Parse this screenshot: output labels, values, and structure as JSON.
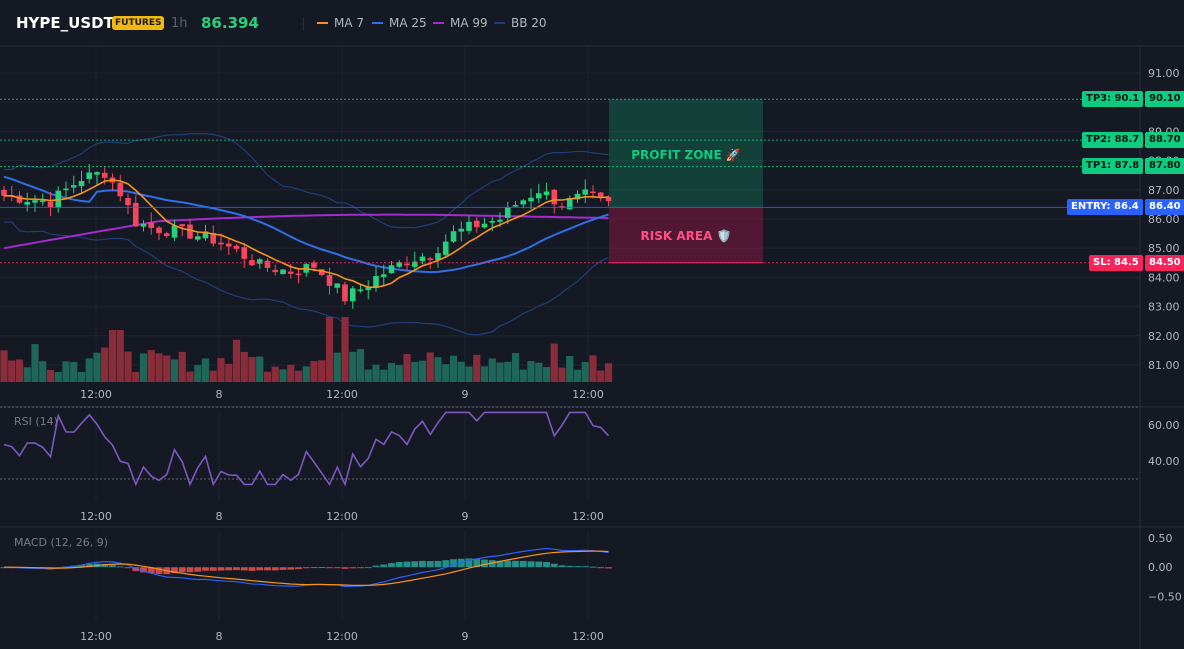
{
  "header": {
    "symbol": "HYPE_USDT",
    "badge": "FUTURES",
    "interval": "1h",
    "price": "86.394",
    "legend": [
      {
        "label": "MA 7",
        "color": "#f7931a"
      },
      {
        "label": "MA 25",
        "color": "#2f6fe8"
      },
      {
        "label": "MA 99",
        "color": "#a52ad0"
      },
      {
        "label": "BB 20",
        "color": "#1f3f7a"
      }
    ]
  },
  "colors": {
    "background": "#151924",
    "up": "#26d07c",
    "down": "#f6465d",
    "volume_up": "#1e6658",
    "volume_down": "#8b2c3a",
    "tp": "#0ecb81",
    "entry": "#2962ff",
    "sl": "#f6245a",
    "rsi": "#7e57c2",
    "macd_line": "#2962ff",
    "signal_line": "#f7931a"
  },
  "price_axis": {
    "ticks": [
      "91.00",
      "90.00",
      "89.00",
      "88.00",
      "87.00",
      "86.00",
      "85.00",
      "84.00",
      "83.00",
      "82.00",
      "81.00"
    ],
    "ylim": [
      80.7,
      91.4
    ]
  },
  "time_axis": {
    "labels": [
      "12:00",
      "8",
      "12:00",
      "9",
      "12:00"
    ]
  },
  "levels": {
    "tp3": {
      "tag": "TP3: 90.1",
      "value": "90.10",
      "price": 90.1
    },
    "tp2": {
      "tag": "TP2: 88.7",
      "value": "88.70",
      "price": 88.7
    },
    "tp1": {
      "tag": "TP1: 87.8",
      "value": "87.80",
      "price": 87.8
    },
    "entry": {
      "tag": "ENTRY: 86.4",
      "value": "86.40",
      "price": 86.4
    },
    "sl": {
      "tag": "SL: 84.5",
      "value": "84.50",
      "price": 84.5
    }
  },
  "zones": {
    "profit_label": "PROFIT ZONE 🚀",
    "risk_label": "RISK AREA 🛡️"
  },
  "rsi": {
    "label": "RSI (14)",
    "ticks": [
      "60.00",
      "40.00"
    ],
    "ylim": [
      20,
      70
    ],
    "overbought": 70,
    "oversold": 30
  },
  "macd": {
    "label": "MACD (12, 26, 9)",
    "ticks": [
      "0.50",
      "0.00",
      "−0.50"
    ],
    "ylim": [
      -0.9,
      0.6
    ]
  }
}
